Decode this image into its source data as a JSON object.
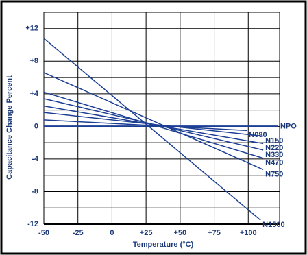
{
  "chart_data": {
    "type": "line",
    "x_label": "Temperature (°C)",
    "y_label": "Capacitance Change Percent",
    "xlim": [
      -50,
      123
    ],
    "ylim": [
      -12,
      14
    ],
    "xticks": [
      {
        "value": -50,
        "label": "-50"
      },
      {
        "value": -25,
        "label": "-25"
      },
      0,
      {
        "value": 25,
        "label": "+25"
      },
      {
        "value": 50,
        "label": "+50"
      },
      {
        "value": 75,
        "label": "+75"
      },
      {
        "value": 100,
        "label": "+100"
      }
    ],
    "yticks": [
      -12,
      -8,
      -4,
      0,
      {
        "value": 4,
        "label": "+4"
      },
      {
        "value": 8,
        "label": "+8"
      },
      {
        "value": 12,
        "label": "+12"
      }
    ],
    "y_minor_grid": [
      -10,
      -6,
      -2,
      2,
      6,
      10,
      14
    ],
    "x_minor_grid": [
      123
    ],
    "grid": true,
    "series": [
      {
        "name": "NPO",
        "color": "#1c3f94",
        "x": [
          -50,
          122
        ],
        "values": [
          0,
          0
        ]
      },
      {
        "name": "N080",
        "color": "#1c3f94",
        "x": [
          -50,
          99
        ],
        "values": [
          0.8,
          -0.5
        ]
      },
      {
        "name": "N150",
        "color": "#1c3f94",
        "x": [
          -50,
          111
        ],
        "values": [
          1.7,
          -1.2
        ]
      },
      {
        "name": "N220",
        "color": "#1c3f94",
        "x": [
          -50,
          111
        ],
        "values": [
          2.5,
          -2.1
        ]
      },
      {
        "name": "N330",
        "color": "#1c3f94",
        "x": [
          -50,
          111
        ],
        "values": [
          3.4,
          -2.9
        ]
      },
      {
        "name": "N470",
        "color": "#1c3f94",
        "x": [
          -50,
          111
        ],
        "values": [
          4.2,
          -3.9
        ]
      },
      {
        "name": "N750",
        "color": "#1c3f94",
        "x": [
          -50,
          111
        ],
        "values": [
          6.6,
          -5.3
        ]
      },
      {
        "name": "N1500",
        "color": "#1c3f94",
        "x": [
          -50,
          109
        ],
        "values": [
          10.8,
          -11.5
        ]
      }
    ]
  }
}
